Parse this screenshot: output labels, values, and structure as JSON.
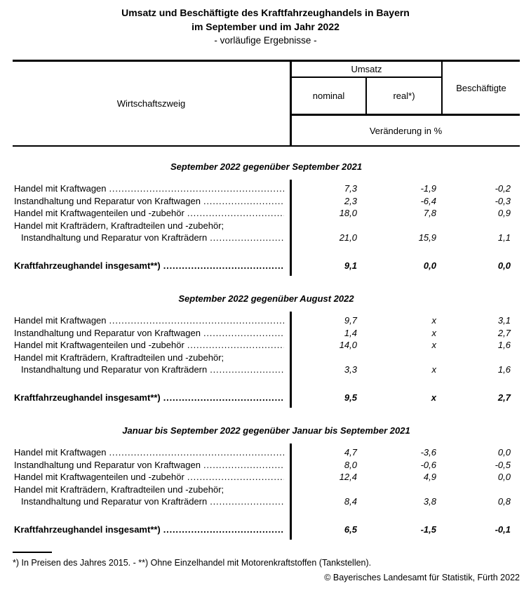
{
  "colors": {
    "text": "#000000",
    "background": "#ffffff"
  },
  "title": {
    "line1": "Umsatz und Beschäftigte des Kraftfahrzeughandels in Bayern",
    "line2": "im September und im Jahr 2022",
    "line3": "- vorläufige Ergebnisse -"
  },
  "header": {
    "col_branch": "Wirtschaftszweig",
    "umsatz": "Umsatz",
    "nominal": "nominal",
    "real": "real*)",
    "beschaeftigte": "Beschäftigte",
    "veraenderung": "Veränderung in %"
  },
  "sections": [
    {
      "heading": "September 2022 gegenüber September 2021",
      "rows": [
        {
          "label": "Handel mit Kraftwagen",
          "nominal": "7,3",
          "real": "-1,9",
          "besch": "-0,2"
        },
        {
          "label": "Instandhaltung und Reparatur von Kraftwagen",
          "nominal": "2,3",
          "real": "-6,4",
          "besch": "-0,3"
        },
        {
          "label": "Handel mit Kraftwagenteilen und -zubehör",
          "nominal": "18,0",
          "real": "7,8",
          "besch": "0,9"
        },
        {
          "label_line1": "Handel mit Krafträdern, Kraftradteilen und -zubehör;",
          "label_line2": "Instandhaltung und Reparatur von Krafträdern",
          "nominal": "21,0",
          "real": "15,9",
          "besch": "1,1"
        }
      ],
      "total": {
        "label": "Kraftfahrzeughandel insgesamt**)",
        "nominal": "9,1",
        "real": "0,0",
        "besch": "0,0"
      }
    },
    {
      "heading": "September 2022 gegenüber August 2022",
      "rows": [
        {
          "label": "Handel mit Kraftwagen",
          "nominal": "9,7",
          "real": "x",
          "besch": "3,1"
        },
        {
          "label": "Instandhaltung und Reparatur von Kraftwagen",
          "nominal": "1,4",
          "real": "x",
          "besch": "2,7"
        },
        {
          "label": "Handel mit Kraftwagenteilen und -zubehör",
          "nominal": "14,0",
          "real": "x",
          "besch": "1,6"
        },
        {
          "label_line1": "Handel mit Krafträdern, Kraftradteilen und -zubehör;",
          "label_line2": "Instandhaltung und Reparatur von Krafträdern",
          "nominal": "3,3",
          "real": "x",
          "besch": "1,6"
        }
      ],
      "total": {
        "label": "Kraftfahrzeughandel insgesamt**)",
        "nominal": "9,5",
        "real": "x",
        "besch": "2,7"
      }
    },
    {
      "heading": "Januar bis September 2022 gegenüber Januar bis September 2021",
      "rows": [
        {
          "label": "Handel mit Kraftwagen",
          "nominal": "4,7",
          "real": "-3,6",
          "besch": "0,0"
        },
        {
          "label": "Instandhaltung und Reparatur von Kraftwagen",
          "nominal": "8,0",
          "real": "-0,6",
          "besch": "-0,5"
        },
        {
          "label": "Handel mit Kraftwagenteilen und -zubehör",
          "nominal": "12,4",
          "real": "4,9",
          "besch": "0,0"
        },
        {
          "label_line1": "Handel mit Krafträdern, Kraftradteilen und -zubehör;",
          "label_line2": "Instandhaltung und Reparatur von Krafträdern",
          "nominal": "8,4",
          "real": "3,8",
          "besch": "0,8"
        }
      ],
      "total": {
        "label": "Kraftfahrzeughandel insgesamt**)",
        "nominal": "6,5",
        "real": "-1,5",
        "besch": "-0,1"
      }
    }
  ],
  "footnote": "*) In Preisen des Jahres 2015. - **) Ohne Einzelhandel mit Motorenkraftstoffen (Tankstellen).",
  "copyright": "© Bayerisches Landesamt für Statistik, Fürth 2022"
}
